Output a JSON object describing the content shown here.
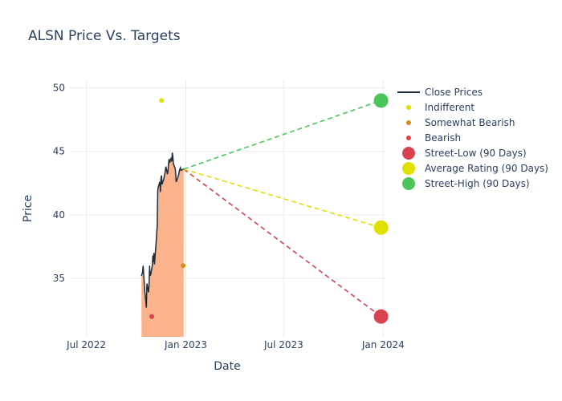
{
  "chart_data": {
    "type": "line",
    "title": "ALSN Price Vs. Targets",
    "xlabel": "Date",
    "ylabel": "Price",
    "xlim": [
      "2022-05-30",
      "2024-01-05"
    ],
    "ylim": [
      30.4,
      50.6
    ],
    "x_ticks": [
      {
        "date": "2022-07-01",
        "label": "Jul 2022"
      },
      {
        "date": "2023-01-01",
        "label": "Jan 2023"
      },
      {
        "date": "2023-07-01",
        "label": "Jul 2023"
      },
      {
        "date": "2024-01-01",
        "label": "Jan 2024"
      }
    ],
    "y_ticks": [
      35,
      40,
      45,
      50
    ],
    "grid": true,
    "legend_position": "right",
    "colors": {
      "close": "#1f2d3d",
      "fill": "#fbb38b",
      "indifferent": "#e0e000",
      "somewhat_bearish": "#d68a1e",
      "bearish": "#d9434f",
      "street_low": "#d9434f",
      "average": "#e0e000",
      "street_high": "#4dc45a"
    },
    "series": [
      {
        "name": "Close Prices",
        "kind": "line",
        "x": [
          "2022-10-11",
          "2022-10-13",
          "2022-10-14",
          "2022-10-17",
          "2022-10-18",
          "2022-10-20",
          "2022-10-21",
          "2022-10-24",
          "2022-10-25",
          "2022-10-26",
          "2022-10-27",
          "2022-10-28",
          "2022-10-31",
          "2022-11-01",
          "2022-11-02",
          "2022-11-03",
          "2022-11-04",
          "2022-11-07",
          "2022-11-08",
          "2022-11-09",
          "2022-11-10",
          "2022-11-11",
          "2022-11-14",
          "2022-11-15",
          "2022-11-16",
          "2022-11-17",
          "2022-11-18",
          "2022-11-21",
          "2022-11-22",
          "2022-11-23",
          "2022-11-25",
          "2022-11-28",
          "2022-11-29",
          "2022-11-30",
          "2022-12-01",
          "2022-12-02",
          "2022-12-05",
          "2022-12-06",
          "2022-12-07",
          "2022-12-08",
          "2022-12-09",
          "2022-12-12",
          "2022-12-13",
          "2022-12-14",
          "2022-12-15",
          "2022-12-16",
          "2022-12-19",
          "2022-12-20",
          "2022-12-21",
          "2022-12-22",
          "2022-12-23",
          "2022-12-27",
          "2022-12-28"
        ],
        "y": [
          35.2,
          35.5,
          36.0,
          34.0,
          33.6,
          32.7,
          34.6,
          33.9,
          34.6,
          36.0,
          35.2,
          35.3,
          36.0,
          36.8,
          36.3,
          37.0,
          36.1,
          37.8,
          38.5,
          39.1,
          41.9,
          42.2,
          42.6,
          41.8,
          42.9,
          43.1,
          42.4,
          42.8,
          43.0,
          43.2,
          43.8,
          43.2,
          43.5,
          44.0,
          44.4,
          44.1,
          44.5,
          44.2,
          44.9,
          44.6,
          44.0,
          43.7,
          43.4,
          42.6,
          42.7,
          42.8,
          43.2,
          43.5,
          43.6,
          43.7,
          43.5,
          43.6,
          43.6
        ]
      },
      {
        "name": "Indifferent",
        "kind": "marker",
        "points": [
          {
            "x": "2022-11-17",
            "y": 49.0
          }
        ]
      },
      {
        "name": "Somewhat Bearish",
        "kind": "marker",
        "points": [
          {
            "x": "2022-12-27",
            "y": 36.0
          }
        ]
      },
      {
        "name": "Bearish",
        "kind": "marker",
        "points": [
          {
            "x": "2022-10-30",
            "y": 32.0
          }
        ]
      },
      {
        "name": "Street-Low (90 Days)",
        "kind": "target",
        "x": "2023-12-28",
        "y": 32.0
      },
      {
        "name": "Average Rating (90 Days)",
        "kind": "target",
        "x": "2023-12-28",
        "y": 39.0
      },
      {
        "name": "Street-High (90 Days)",
        "kind": "target",
        "x": "2023-12-28",
        "y": 49.0
      }
    ]
  }
}
